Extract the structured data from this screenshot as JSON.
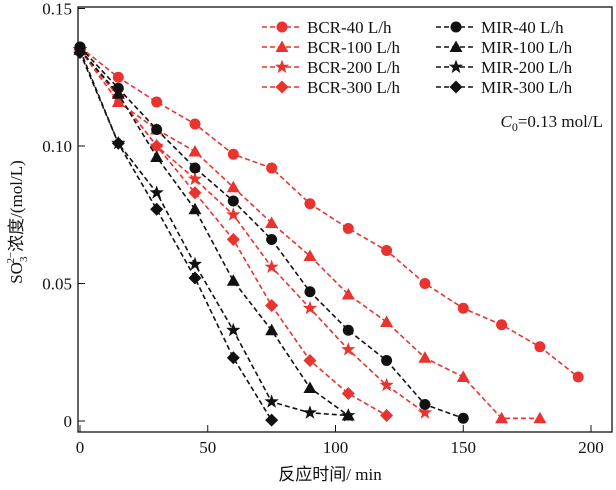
{
  "chart_data": {
    "type": "line",
    "title": "",
    "xlabel": "反应时间/ min",
    "ylabel": {
      "base": "SO",
      "sub": "3",
      "sup": "2−",
      "rest": "浓度/(mol/L)"
    },
    "xlim": [
      -2,
      207
    ],
    "ylim": [
      0,
      0.15
    ],
    "xticks": [
      0,
      50,
      100,
      150,
      200
    ],
    "xtick_labels": [
      "0",
      "50",
      "100",
      "150",
      "200"
    ],
    "yticks": [
      0,
      0.05,
      0.1,
      0.15
    ],
    "ytick_labels": [
      "0",
      "0.05",
      "0.10",
      "0.15"
    ],
    "grid": false,
    "legend_placement": "top-right",
    "annotation": {
      "c": "C",
      "sub": "0",
      "rest": "=0.13 mol/L"
    },
    "colors": {
      "BCR": "#e8332f",
      "MIR": "#111111"
    },
    "series": [
      {
        "name": "BCR-40 L/h",
        "color": "#e8332f",
        "marker": "circle",
        "x": [
          0,
          15,
          30,
          45,
          60,
          75,
          90,
          105,
          120,
          135,
          150,
          165,
          180,
          195
        ],
        "y": [
          0.136,
          0.125,
          0.116,
          0.108,
          0.097,
          0.092,
          0.079,
          0.07,
          0.062,
          0.05,
          0.041,
          0.035,
          0.027,
          0.016
        ]
      },
      {
        "name": "BCR-100 L/h",
        "color": "#e8332f",
        "marker": "triangle",
        "x": [
          0,
          15,
          30,
          45,
          60,
          75,
          90,
          105,
          120,
          135,
          150,
          165,
          180
        ],
        "y": [
          0.135,
          0.116,
          0.106,
          0.098,
          0.085,
          0.072,
          0.06,
          0.046,
          0.036,
          0.023,
          0.016,
          0.001,
          0.001
        ]
      },
      {
        "name": "BCR-200 L/h",
        "color": "#e8332f",
        "marker": "star",
        "x": [
          0,
          15,
          30,
          45,
          60,
          75,
          90,
          105,
          120,
          135
        ],
        "y": [
          0.135,
          0.118,
          0.1,
          0.088,
          0.075,
          0.056,
          0.041,
          0.026,
          0.013,
          0.003
        ]
      },
      {
        "name": "BCR-300 L/h",
        "color": "#e8332f",
        "marker": "diamond",
        "x": [
          0,
          15,
          30,
          45,
          60,
          75,
          90,
          105,
          120
        ],
        "y": [
          0.135,
          0.118,
          0.1,
          0.083,
          0.066,
          0.042,
          0.022,
          0.01,
          0.002
        ]
      },
      {
        "name": "MIR-40 L/h",
        "color": "#111111",
        "marker": "circle",
        "x": [
          0,
          15,
          30,
          45,
          60,
          75,
          90,
          105,
          120,
          135,
          150
        ],
        "y": [
          0.136,
          0.121,
          0.106,
          0.092,
          0.08,
          0.066,
          0.047,
          0.033,
          0.022,
          0.006,
          0.001
        ]
      },
      {
        "name": "MIR-100 L/h",
        "color": "#111111",
        "marker": "triangle",
        "x": [
          0,
          15,
          30,
          45,
          60,
          75,
          90,
          105
        ],
        "y": [
          0.135,
          0.119,
          0.096,
          0.077,
          0.051,
          0.033,
          0.012,
          0.002
        ]
      },
      {
        "name": "MIR-200 L/h",
        "color": "#111111",
        "marker": "star",
        "x": [
          0,
          15,
          30,
          45,
          60,
          75,
          90,
          105
        ],
        "y": [
          0.135,
          0.101,
          0.083,
          0.057,
          0.033,
          0.007,
          0.003,
          0.002
        ]
      },
      {
        "name": "MIR-300 L/h",
        "color": "#111111",
        "marker": "diamond",
        "x": [
          0,
          15,
          30,
          45,
          60,
          75
        ],
        "y": [
          0.134,
          0.101,
          0.077,
          0.052,
          0.023,
          0.0003
        ]
      }
    ]
  }
}
